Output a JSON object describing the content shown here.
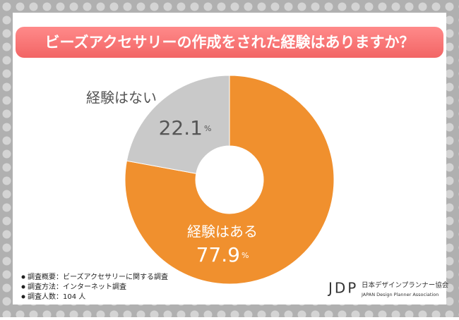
{
  "chart_data": {
    "type": "donut",
    "title": "ビーズアクセサリーの作成をされた経験はありますか？",
    "categories": [
      "経験はある",
      "経験はない"
    ],
    "values": [
      77.9,
      22.1
    ],
    "unit": "%",
    "colors": [
      "#f0902e",
      "#c9c9c9"
    ],
    "notes": [
      "調査概要：ビーズアクセサリーに関する調査",
      "調査方法：インターネット調査",
      "調査人数：104 人"
    ]
  },
  "logo": {
    "mark": "JDP",
    "name": "日本デザインプランナー協会",
    "name_en": "JAPAN Design Planner Association"
  }
}
